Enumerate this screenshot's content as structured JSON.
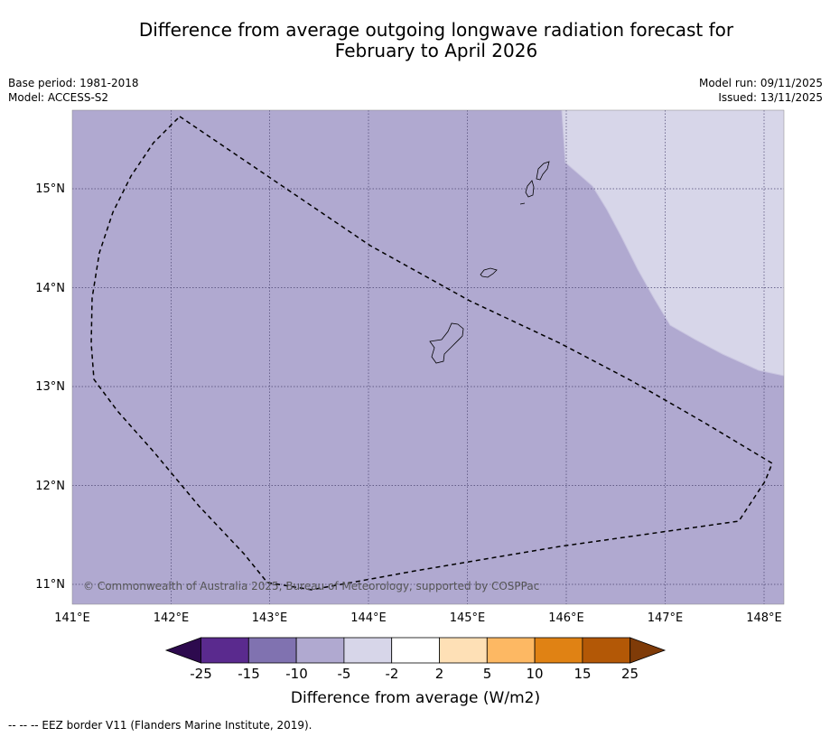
{
  "title": {
    "line1": "Difference from average outgoing longwave radiation forecast for",
    "line2": "February to April 2026"
  },
  "meta": {
    "base_period": "Base period: 1981-2018",
    "model": "Model: ACCESS-S2",
    "model_run": "Model run: 09/11/2025",
    "issued": "Issued: 13/11/2025"
  },
  "map": {
    "lon_range": [
      141.0,
      148.2
    ],
    "lat_range": [
      10.8,
      15.8
    ],
    "lon_ticks": [
      "141°E",
      "142°E",
      "143°E",
      "144°E",
      "145°E",
      "146°E",
      "147°E",
      "148°E"
    ],
    "lat_ticks": [
      "11°N",
      "12°N",
      "13°N",
      "14°N",
      "15°N"
    ],
    "base_fill_color": "#b0a9d0",
    "anomaly_region_color": "#d7d6e9",
    "anomaly_region_category": "-5 to -2",
    "base_category": "-10 to -5",
    "copyright": "© Commonwealth of Australia 2025, Bureau of Meteorology, supported by COSPPac"
  },
  "colorbar": {
    "labels": [
      "-25",
      "-15",
      "-10",
      "-5",
      "-2",
      "2",
      "5",
      "10",
      "15",
      "25"
    ],
    "colors": [
      "#2d0a4e",
      "#5a2a8e",
      "#8072b0",
      "#b0a9d0",
      "#d7d6e9",
      "#ffffff",
      "#fee0b6",
      "#fdb863",
      "#e08214",
      "#b35806",
      "#7f3b08"
    ],
    "title": "Difference from average (W/m2)"
  },
  "footnote": "--  --  -- EEZ border V11 (Flanders Marine Institute, 2019)."
}
